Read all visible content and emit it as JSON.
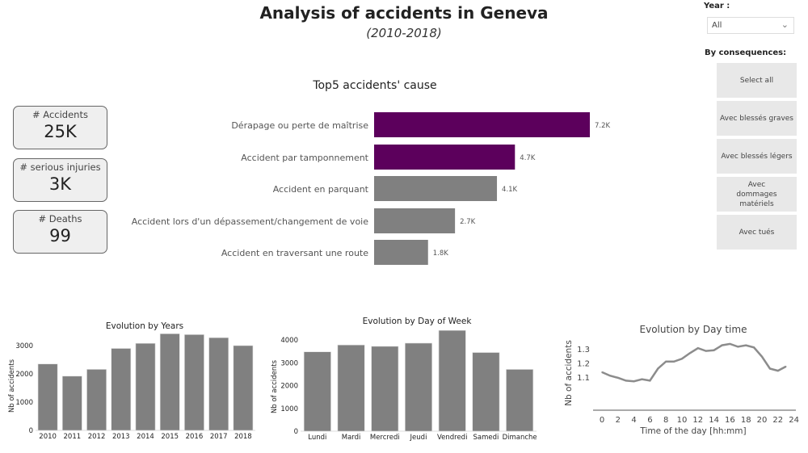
{
  "header": {
    "title": "Analysis of accidents in Geneva",
    "subtitle": "(2010-2018)"
  },
  "kpis": [
    {
      "label": "# Accidents",
      "value": "25K"
    },
    {
      "label": "# serious injuries",
      "value": "3K"
    },
    {
      "label": "# Deaths",
      "value": "99"
    }
  ],
  "filters": {
    "year_label": "Year :",
    "year_value": "All",
    "year_icon": "chevron-down-icon",
    "consequences_label": "By consequences:",
    "buttons": [
      "Select all",
      "Avec blessés graves",
      "Avec blessés légers",
      "Avec dommages matériels",
      "Avec tués"
    ]
  },
  "colors": {
    "highlight": "#5c005c",
    "bar": "#808080",
    "line": "#8c8c8c"
  },
  "chart_data": [
    {
      "type": "bar",
      "orientation": "horizontal",
      "title": "Top5 accidents' cause",
      "categories": [
        "Dérapage ou perte de maîtrise",
        "Accident par tamponnement",
        "Accident en parquant",
        "Accident lors d'un dépassement/changement de voie",
        "Accident en traversant une route"
      ],
      "values": [
        7200,
        4700,
        4100,
        2700,
        1800
      ],
      "data_labels": [
        "7.2K",
        "4.7K",
        "4.1K",
        "2.7K",
        "1.8K"
      ],
      "highlighted": [
        true,
        true,
        false,
        false,
        false
      ]
    },
    {
      "type": "bar",
      "title": "Evolution by Years",
      "xlabel": "",
      "ylabel": "Nb of accidents",
      "categories": [
        "2010",
        "2011",
        "2012",
        "2013",
        "2014",
        "2015",
        "2016",
        "2017",
        "2018"
      ],
      "values": [
        2350,
        1920,
        2160,
        2900,
        3080,
        3420,
        3390,
        3280,
        3000
      ],
      "ylim": [
        0,
        3500
      ],
      "yticks": [
        "0",
        "1000",
        "2000",
        "3000"
      ],
      "grid": false
    },
    {
      "type": "bar",
      "title": "Evolution by Day of Week",
      "xlabel": "",
      "ylabel": "Nb of accidents",
      "categories": [
        "Lundi",
        "Mardi",
        "Mercredi",
        "Jeudi",
        "Vendredi",
        "Samedi",
        "Dimanche"
      ],
      "values": [
        3480,
        3780,
        3720,
        3860,
        4420,
        3450,
        2710
      ],
      "ylim": [
        0,
        4500
      ],
      "yticks": [
        "0",
        "1000",
        "2000",
        "3000",
        "4000"
      ],
      "grid": false
    },
    {
      "type": "line",
      "title": "Evolution by Day time",
      "xlabel": "Time of the day  [hh:mm]",
      "ylabel": "Nb of accidents",
      "x": [
        0,
        1,
        2,
        3,
        4,
        5,
        6,
        7,
        8,
        9,
        10,
        11,
        12,
        13,
        14,
        15,
        16,
        17,
        18,
        19,
        20,
        21,
        22,
        23
      ],
      "y": [
        1.135,
        1.11,
        1.095,
        1.075,
        1.07,
        1.085,
        1.075,
        1.16,
        1.21,
        1.21,
        1.23,
        1.27,
        1.305,
        1.285,
        1.29,
        1.325,
        1.335,
        1.315,
        1.325,
        1.31,
        1.245,
        1.16,
        1.145,
        1.175
      ],
      "xticks": [
        "0",
        "2",
        "4",
        "6",
        "8",
        "10",
        "12",
        "14",
        "16",
        "18",
        "20",
        "22",
        "24"
      ],
      "yticks": [
        "1.1",
        "1.2",
        "1.3"
      ],
      "xlim": [
        -1,
        24.5
      ],
      "ylim": [
        1.057,
        1.36
      ],
      "grid": false
    }
  ]
}
